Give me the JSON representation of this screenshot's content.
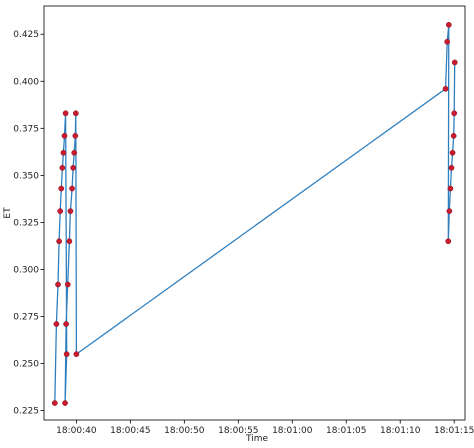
{
  "chart_data": {
    "type": "scatter",
    "xlabel": "Time",
    "ylabel": "ET",
    "x_tick_labels": [
      "18:00:40",
      "18:00:45",
      "18:00:50",
      "18:00:55",
      "18:01:00",
      "18:01:05",
      "18:01:10",
      "18:01:15"
    ],
    "x_tick_seconds": [
      40,
      45,
      50,
      55,
      60,
      65,
      70,
      75
    ],
    "xlim_seconds": [
      37.0,
      76.0
    ],
    "y_tick_labels": [
      "0.225",
      "0.250",
      "0.275",
      "0.300",
      "0.325",
      "0.350",
      "0.375",
      "0.400",
      "0.425"
    ],
    "y_ticks": [
      0.225,
      0.25,
      0.275,
      0.3,
      0.325,
      0.35,
      0.375,
      0.4,
      0.425
    ],
    "ylim": [
      0.22,
      0.44
    ],
    "grid": false,
    "colors": {
      "line": "#2f7fbf",
      "marker": "#cc1a2e",
      "marker_edge": "#7a1020"
    },
    "series": [
      {
        "x_seconds": [
          38.0,
          38.15,
          38.3,
          38.4,
          38.5,
          38.6,
          38.7,
          38.8,
          38.9,
          39.0,
          39.1,
          38.95,
          39.05,
          39.2,
          39.35,
          39.45,
          39.6,
          39.7,
          39.8,
          39.9,
          39.95,
          40.0,
          74.2,
          74.35,
          74.5,
          74.45,
          74.55,
          74.65,
          74.75,
          74.85,
          74.95,
          75.0,
          75.05
        ],
        "y": [
          0.229,
          0.271,
          0.292,
          0.315,
          0.331,
          0.343,
          0.354,
          0.362,
          0.371,
          0.383,
          0.255,
          0.229,
          0.271,
          0.292,
          0.315,
          0.331,
          0.343,
          0.354,
          0.362,
          0.371,
          0.383,
          0.255,
          0.396,
          0.421,
          0.43,
          0.315,
          0.331,
          0.343,
          0.354,
          0.362,
          0.371,
          0.383,
          0.41
        ]
      }
    ]
  }
}
